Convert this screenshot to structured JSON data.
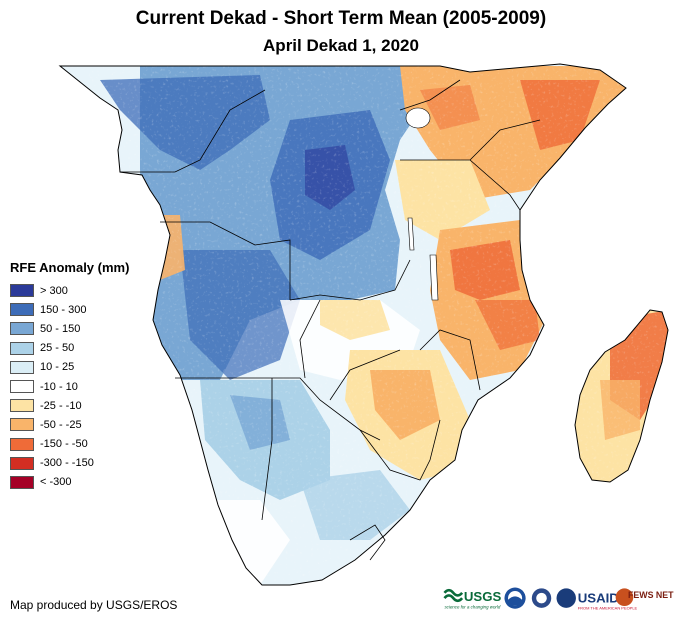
{
  "header": {
    "title": "Current Dekad - Short Term Mean (2005-2009)",
    "subtitle": "April Dekad 1, 2020"
  },
  "legend": {
    "title": "RFE Anomaly (mm)",
    "items": [
      {
        "label": "> 300",
        "color": "#2b3a99"
      },
      {
        "label": "150 - 300",
        "color": "#3d6cb8"
      },
      {
        "label": "50 - 150",
        "color": "#79a7d4"
      },
      {
        "label": "25 - 50",
        "color": "#acd2e8"
      },
      {
        "label": "10 - 25",
        "color": "#dbeef6"
      },
      {
        "label": "-10 - 10",
        "color": "#ffffff"
      },
      {
        "label": "-25 - -10",
        "color": "#fde3a4"
      },
      {
        "label": "-50 - -25",
        "color": "#f9b46a"
      },
      {
        "label": "-150 - -50",
        "color": "#ef6b38"
      },
      {
        "label": "-300 - -150",
        "color": "#d32e22"
      },
      {
        "label": "< -300",
        "color": "#a50026"
      }
    ]
  },
  "footer": {
    "credit": "Map produced by USGS/EROS",
    "logos": {
      "usgs": "USGS",
      "usgs_tagline": "science for a changing world",
      "usaid": "USAID",
      "usaid_tagline": "FROM THE AMERICAN PEOPLE",
      "fews": "FEWS NET"
    }
  }
}
